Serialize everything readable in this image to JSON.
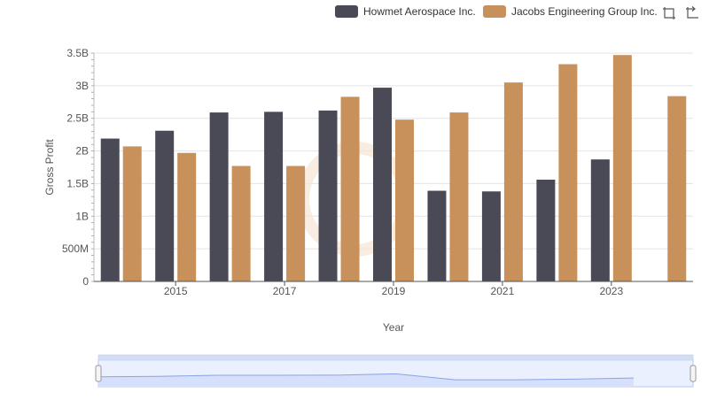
{
  "chart_data": {
    "type": "bar",
    "title": "",
    "xlabel": "Year",
    "ylabel": "Gross Profit",
    "ylim": [
      0,
      3500000000
    ],
    "y_ticks": [
      {
        "value": 0,
        "label": "0"
      },
      {
        "value": 500000000,
        "label": "500M"
      },
      {
        "value": 1000000000,
        "label": "1B"
      },
      {
        "value": 1500000000,
        "label": "1.5B"
      },
      {
        "value": 2000000000,
        "label": "2B"
      },
      {
        "value": 2500000000,
        "label": "2.5B"
      },
      {
        "value": 3000000000,
        "label": "3B"
      },
      {
        "value": 3500000000,
        "label": "3.5B"
      }
    ],
    "categories": [
      "2014",
      "2015",
      "2016",
      "2017",
      "2018",
      "2019",
      "2020",
      "2021",
      "2022",
      "2023",
      "2024"
    ],
    "x_tick_labels": [
      "2015",
      "2017",
      "2019",
      "2021",
      "2023"
    ],
    "series": [
      {
        "name": "Howmet Aerospace Inc.",
        "color": "#4a4a57",
        "values": [
          2190000000,
          2310000000,
          2590000000,
          2600000000,
          2620000000,
          2970000000,
          1390000000,
          1380000000,
          1560000000,
          1870000000,
          null
        ]
      },
      {
        "name": "Jacobs Engineering Group Inc.",
        "color": "#c8915c",
        "values": [
          2070000000,
          1970000000,
          1770000000,
          1770000000,
          2830000000,
          2480000000,
          2590000000,
          3050000000,
          3330000000,
          3470000000,
          2840000000
        ]
      }
    ],
    "legend_position": "top-right",
    "grid": true
  },
  "navigator": {
    "series_values": [
      2190000000,
      2310000000,
      2590000000,
      2600000000,
      2620000000,
      2970000000,
      1390000000,
      1380000000,
      1560000000,
      1870000000,
      null
    ],
    "fill_color": "#d6e0fa",
    "line_color": "#8aa3e8"
  },
  "toolbar": {
    "zoom_icon": "crosshair-zoom-icon",
    "reset_icon": "reset-zoom-icon"
  }
}
